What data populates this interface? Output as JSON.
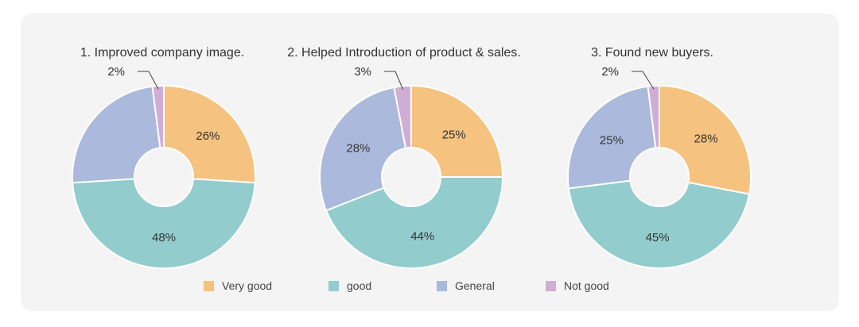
{
  "chart_data": [
    {
      "type": "pie",
      "variant": "donut",
      "title": "1. Improved company image.",
      "categories": [
        "Very good",
        "good",
        "General",
        "Not good"
      ],
      "values": [
        26,
        48,
        24,
        2
      ],
      "labels": [
        "26%",
        "48%",
        "",
        "2%"
      ]
    },
    {
      "type": "pie",
      "variant": "donut",
      "title": "2. Helped Introduction of product & sales.",
      "categories": [
        "Very good",
        "good",
        "General",
        "Not good"
      ],
      "values": [
        25,
        44,
        28,
        3
      ],
      "labels": [
        "25%",
        "44%",
        "28%",
        "3%"
      ]
    },
    {
      "type": "pie",
      "variant": "donut",
      "title": "3. Found new buyers.",
      "categories": [
        "Very good",
        "good",
        "General",
        "Not good"
      ],
      "values": [
        28,
        45,
        25,
        2
      ],
      "labels": [
        "28%",
        "45%",
        "25%",
        "2%"
      ]
    }
  ],
  "legend": {
    "items": [
      {
        "label": "Very good",
        "color": "#f5c27f"
      },
      {
        "label": "good",
        "color": "#93cccd"
      },
      {
        "label": "General",
        "color": "#abb9dc"
      },
      {
        "label": "Not good",
        "color": "#cfadd5"
      }
    ]
  }
}
